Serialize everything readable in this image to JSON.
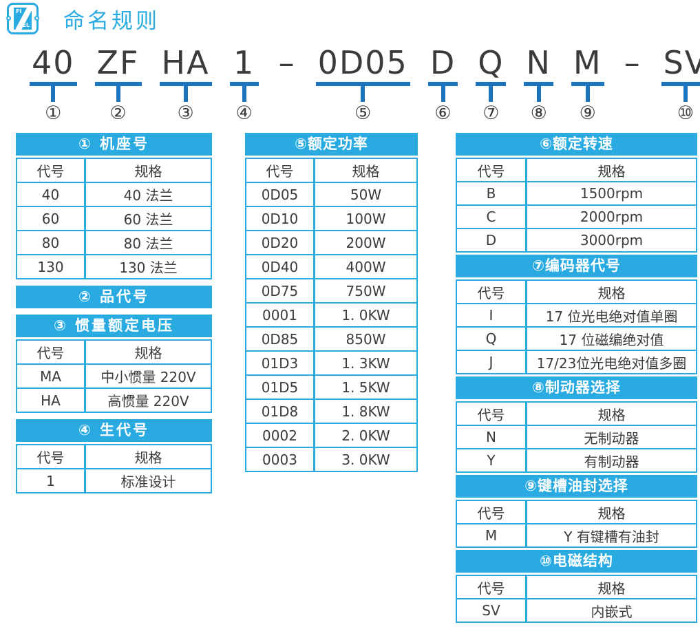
{
  "page": {
    "title": "命名规则"
  },
  "logo": {
    "top_text": "FI",
    "bottom_text": "EL"
  },
  "colors": {
    "accent_cyan": "#29ABE2",
    "underline_blue": "#1C75BC",
    "text_dark": "#3B3B3C"
  },
  "model": {
    "segments": [
      {
        "text": "40",
        "num": "①"
      },
      {
        "text": "ZF",
        "num": "②"
      },
      {
        "text": "HA",
        "num": "③"
      },
      {
        "text": "1",
        "num": "④"
      },
      {
        "text": "–"
      },
      {
        "text": "0D05",
        "num": "⑤"
      },
      {
        "text": "D",
        "num": "⑥"
      },
      {
        "text": "Q",
        "num": "⑦"
      },
      {
        "text": "N",
        "num": "⑧"
      },
      {
        "text": "M",
        "num": "⑨"
      },
      {
        "text": "–"
      },
      {
        "text": "SV",
        "num": "⑩"
      }
    ]
  },
  "tables": {
    "t1": {
      "title": "①  机座号",
      "rows": [
        [
          "代号",
          "规格"
        ],
        [
          "40",
          "40 法兰"
        ],
        [
          "60",
          "60 法兰"
        ],
        [
          "80",
          "80 法兰"
        ],
        [
          "130",
          "130 法兰"
        ]
      ]
    },
    "t2": {
      "title": "②  品代号"
    },
    "t3": {
      "title": "③ 惯量额定电压",
      "rows": [
        [
          "代号",
          "规格"
        ],
        [
          "MA",
          "中小惯量 220V"
        ],
        [
          "HA",
          "高惯量 220V"
        ]
      ]
    },
    "t4": {
      "title": "④  生代号",
      "rows": [
        [
          "代号",
          "规格"
        ],
        [
          "1",
          "标准设计"
        ]
      ]
    },
    "t5": {
      "title": "⑤额定功率",
      "rows": [
        [
          "代号",
          "规格"
        ],
        [
          "0D05",
          "50W"
        ],
        [
          "0D10",
          "100W"
        ],
        [
          "0D20",
          "200W"
        ],
        [
          "0D40",
          "400W"
        ],
        [
          "0D75",
          "750W"
        ],
        [
          "0001",
          "1. 0KW"
        ],
        [
          "0D85",
          "850W"
        ],
        [
          "01D3",
          "1. 3KW"
        ],
        [
          "01D5",
          "1. 5KW"
        ],
        [
          "01D8",
          "1. 8KW"
        ],
        [
          "0002",
          "2. 0KW"
        ],
        [
          "0003",
          "3. 0KW"
        ]
      ]
    },
    "t6": {
      "title": "⑥额定转速",
      "rows": [
        [
          "代号",
          "规格"
        ],
        [
          "B",
          "1500rpm"
        ],
        [
          "C",
          "2000rpm"
        ],
        [
          "D",
          "3000rpm"
        ]
      ]
    },
    "t7": {
      "title": "⑦编码器代号",
      "rows": [
        [
          "代号",
          "规格"
        ],
        [
          "I",
          "17 位光电绝对值单圈"
        ],
        [
          "Q",
          "17 位磁编绝对值"
        ],
        [
          "J",
          "17/23位光电绝对值多圈"
        ]
      ]
    },
    "t8": {
      "title": "⑧制动器选择",
      "rows": [
        [
          "代号",
          "规格"
        ],
        [
          "N",
          "无制动器"
        ],
        [
          "Y",
          "有制动器"
        ]
      ]
    },
    "t9": {
      "title": "⑨键槽油封选择",
      "rows": [
        [
          "代号",
          "规格"
        ],
        [
          "M",
          "Y 有键槽有油封"
        ]
      ]
    },
    "t10": {
      "title": "⑩电磁结构",
      "rows": [
        [
          "代号",
          "规格"
        ],
        [
          "SV",
          "内嵌式"
        ]
      ]
    }
  }
}
